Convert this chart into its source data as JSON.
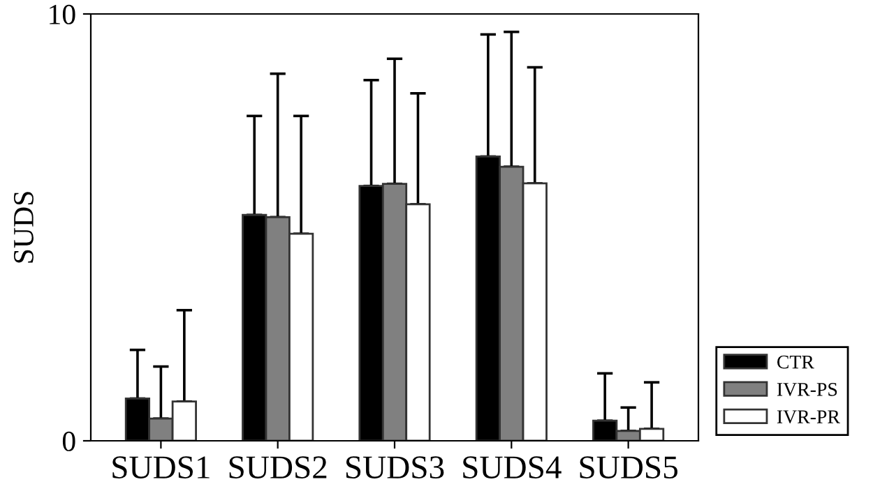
{
  "chart_data": {
    "type": "bar",
    "ylabel": "SUDS",
    "categories": [
      "SUDS1",
      "SUDS2",
      "SUDS3",
      "SUDS4",
      "SUDS5"
    ],
    "series": [
      {
        "name": "CTR",
        "color": "#000000",
        "values": [
          0.99,
          5.29,
          5.97,
          6.66,
          0.47
        ],
        "errors": [
          [
            0.99,
            2.13
          ],
          [
            5.29,
            7.61
          ],
          [
            5.97,
            8.45
          ],
          [
            6.66,
            9.52
          ],
          [
            0.47,
            1.58
          ]
        ]
      },
      {
        "name": "IVR-PS",
        "color": "#808080",
        "values": [
          0.52,
          5.24,
          6.02,
          6.42,
          0.23
        ],
        "errors": [
          [
            0.52,
            1.74
          ],
          [
            5.24,
            8.6
          ],
          [
            6.02,
            8.95
          ],
          [
            6.42,
            9.58
          ],
          [
            0.23,
            0.78
          ]
        ]
      },
      {
        "name": "IVR-PR",
        "color": "#ffffff",
        "values": [
          0.92,
          4.85,
          5.54,
          6.03,
          0.28
        ],
        "errors": [
          [
            0.92,
            3.06
          ],
          [
            4.85,
            7.61
          ],
          [
            5.54,
            8.14
          ],
          [
            6.03,
            8.75
          ],
          [
            0.28,
            1.37
          ]
        ]
      }
    ],
    "ylim": [
      0,
      10
    ],
    "yticks": [
      0,
      10
    ],
    "grid": false,
    "legend": "bottom right"
  }
}
